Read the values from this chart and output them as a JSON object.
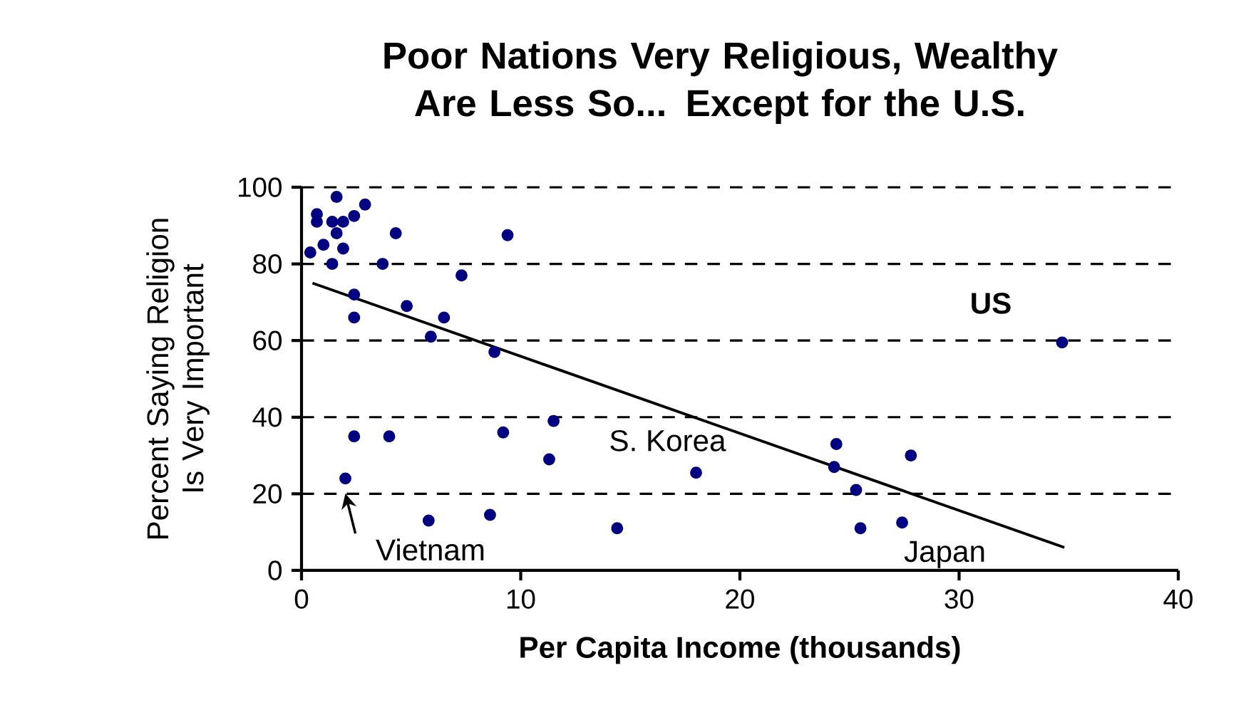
{
  "chart_data": {
    "type": "scatter",
    "title": "Poor Nations Very Religious, Wealthy Are Less So... Except for the U.S.",
    "xlabel": "Per Capita Income (thousands)",
    "ylabel": "Percent Saying Religion Is Very Important",
    "xlim": [
      0,
      40
    ],
    "xticks": [
      0,
      10,
      20,
      30,
      40
    ],
    "ylim": [
      0,
      100
    ],
    "yticks": [
      0,
      20,
      40,
      60,
      80,
      100
    ],
    "grid": "y",
    "series": [
      {
        "color": "#000080",
        "marker": "circle",
        "x": [
          0.4,
          0.7,
          0.7,
          1.0,
          1.6,
          1.4,
          1.9,
          2.4,
          2.9,
          1.6,
          1.9,
          1.4,
          3.7,
          4.3,
          9.4,
          7.3,
          2.4,
          2.4,
          4.8,
          6.5,
          5.9,
          8.8,
          2.4,
          4.0,
          9.2,
          11.5,
          11.3,
          2.0,
          5.8,
          8.6,
          14.4,
          18.0,
          24.4,
          24.3,
          25.3,
          25.5,
          27.8,
          27.4,
          34.7
        ],
        "values": [
          83,
          93,
          91,
          85,
          97.5,
          91,
          91,
          92.5,
          95.5,
          88,
          84,
          80,
          80,
          88,
          87.5,
          77,
          72,
          66,
          69,
          66,
          61,
          57,
          35,
          35,
          36,
          39,
          29,
          24,
          13,
          14.5,
          11,
          25.5,
          33,
          27,
          21,
          11,
          30,
          12.5,
          59.5
        ]
      },
      {
        "type": "line",
        "color": "#000000",
        "marker": "none",
        "x": [
          0.5,
          34.8
        ],
        "values": [
          75,
          6
        ]
      }
    ],
    "annotations": [
      {
        "text": "US",
        "x": 34.7,
        "y": 59.5
      },
      {
        "text": "S. Korea",
        "x": 18.0,
        "y": 25.5
      },
      {
        "text": "Vietnam",
        "x": 2.0,
        "y": 24
      },
      {
        "text": "Japan",
        "x": 27.4,
        "y": 12.5
      }
    ]
  }
}
